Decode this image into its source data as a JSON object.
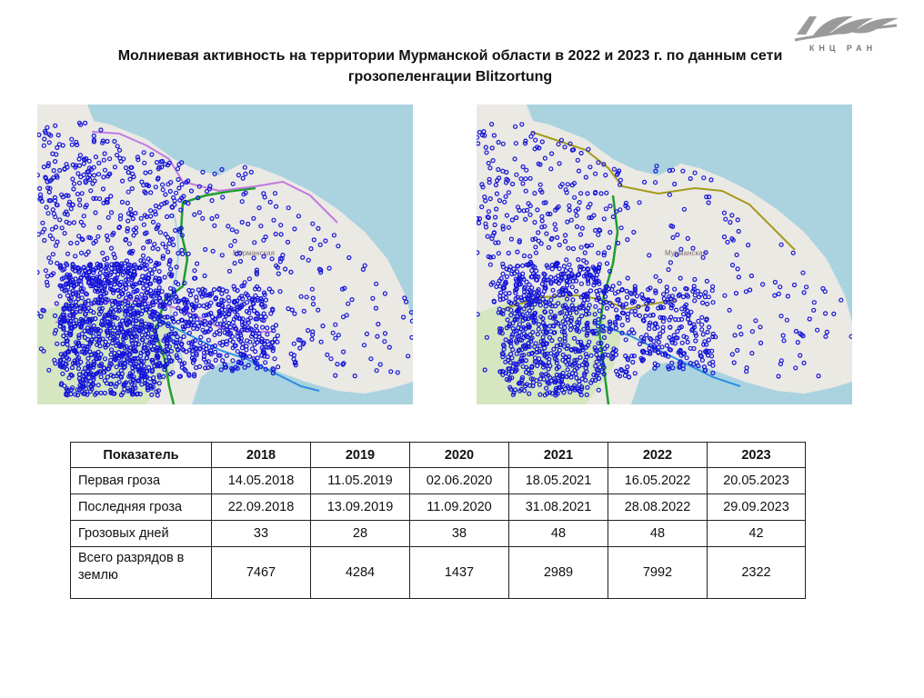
{
  "logo": {
    "text": "КНЦ РАН",
    "color": "#9a9a9a"
  },
  "title": "Молниевая активность на территории Мурманской области в 2022 и 2023 г. по данным сети грозопеленгации Blitzortung",
  "maps": [
    {
      "label": "Мурманская",
      "strike_color": "#1414d8",
      "land_color": "#ebe9e4",
      "water_color": "#aad3df",
      "forest_color": "#cfe5b8"
    },
    {
      "label": "Мурманская",
      "strike_color": "#1414d8",
      "land_color": "#ebe9e4",
      "water_color": "#aad3df",
      "forest_color": "#cfe5b8"
    }
  ],
  "table": {
    "headers": [
      "Показатель",
      "2018",
      "2019",
      "2020",
      "2021",
      "2022",
      "2023"
    ],
    "rows": [
      [
        "Первая гроза",
        "14.05.2018",
        "11.05.2019",
        "02.06.2020",
        "18.05.2021",
        "16.05.2022",
        "20.05.2023"
      ],
      [
        "Последняя гроза",
        "22.09.2018",
        "13.09.2019",
        "11.09.2020",
        "31.08.2021",
        "28.08.2022",
        "29.09.2023"
      ],
      [
        "Грозовых дней",
        "33",
        "28",
        "38",
        "48",
        "48",
        "42"
      ],
      [
        "Всего разрядов в землю",
        "7467",
        "4284",
        "1437",
        "2989",
        "7992",
        "2322"
      ]
    ]
  }
}
